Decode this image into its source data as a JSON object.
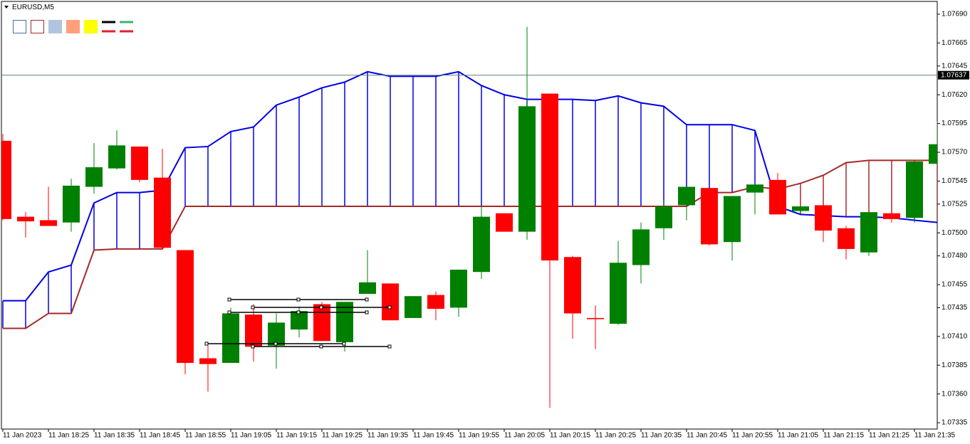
{
  "chart_data": {
    "type": "candlestick",
    "symbol": "EURUSD,M5",
    "categories": [
      "11 Jan 2023",
      null,
      "11 Jan 18:25",
      null,
      "11 Jan 18:35",
      null,
      "11 Jan 18:45",
      null,
      "11 Jan 18:55",
      null,
      "11 Jan 19:05",
      null,
      "11 Jan 19:15",
      null,
      "11 Jan 19:25",
      null,
      "11 Jan 19:35",
      null,
      "11 Jan 19:45",
      null,
      "11 Jan 19:55",
      null,
      "11 Jan 20:05",
      null,
      "11 Jan 20:15",
      null,
      "11 Jan 20:25",
      null,
      "11 Jan 20:35",
      null,
      "11 Jan 20:45",
      null,
      "11 Jan 20:55",
      null,
      "11 Jan 21:05",
      null,
      "11 Jan 21:15",
      null,
      "11 Jan 21:25",
      null,
      "11 Jan 21:35",
      null
    ],
    "open": [
      1.0758,
      1.07514,
      1.07511,
      1.07509,
      1.0754,
      1.07556,
      1.07575,
      1.07548,
      1.07485,
      1.07391,
      1.07387,
      1.07429,
      1.07402,
      1.07416,
      1.07438,
      1.07405,
      1.07447,
      1.07456,
      1.07426,
      1.07446,
      1.07435,
      1.07466,
      1.07517,
      1.07501,
      1.07621,
      1.07479,
      1.07426,
      1.07421,
      1.07472,
      1.07504,
      1.07524,
      1.07539,
      1.07492,
      1.07535,
      1.07546,
      1.07519,
      1.07524,
      1.07504,
      1.07483,
      1.07517,
      1.07513,
      1.0756
    ],
    "high": [
      1.07586,
      1.07518,
      1.0754,
      1.07547,
      1.07578,
      1.07589,
      1.07575,
      1.07573,
      1.07485,
      1.07402,
      1.07435,
      1.07438,
      1.0743,
      1.07436,
      1.0744,
      1.0744,
      1.07485,
      1.07456,
      1.07445,
      1.07449,
      1.07468,
      1.07523,
      1.07517,
      1.07679,
      1.07621,
      1.0748,
      1.07437,
      1.07493,
      1.07509,
      1.07528,
      1.0754,
      1.07539,
      1.07532,
      1.07543,
      1.07552,
      1.07523,
      1.07524,
      1.07506,
      1.07518,
      1.07519,
      1.07562,
      1.07597
    ],
    "low": [
      1.07511,
      1.07496,
      1.07506,
      1.07501,
      1.07534,
      1.07555,
      1.07544,
      1.07486,
      1.07377,
      1.07362,
      1.07387,
      1.07388,
      1.07382,
      1.07409,
      1.07406,
      1.07397,
      1.07447,
      1.07424,
      1.07426,
      1.07424,
      1.07427,
      1.0746,
      1.07501,
      1.07494,
      1.07348,
      1.07408,
      1.07399,
      1.0742,
      1.07456,
      1.07494,
      1.07511,
      1.07489,
      1.07476,
      1.07516,
      1.07516,
      1.07517,
      1.07492,
      1.07477,
      1.0748,
      1.07509,
      1.07509,
      1.0756
    ],
    "close": [
      1.07512,
      1.0751,
      1.07506,
      1.07541,
      1.07557,
      1.07576,
      1.07546,
      1.07487,
      1.07387,
      1.07386,
      1.0743,
      1.07401,
      1.07422,
      1.07432,
      1.07406,
      1.0744,
      1.07457,
      1.07424,
      1.07445,
      1.07434,
      1.07468,
      1.07514,
      1.07501,
      1.0761,
      1.07476,
      1.0743,
      1.07425,
      1.07474,
      1.07503,
      1.07523,
      1.0754,
      1.0749,
      1.07532,
      1.07542,
      1.07516,
      1.07523,
      1.07502,
      1.07486,
      1.07518,
      1.07512,
      1.07562,
      1.07577
    ],
    "up_color": "#008000",
    "down_color": "#ff0000",
    "lines": [
      {
        "color": "#0000e6",
        "values": [
          1.07441,
          1.07441,
          1.07466,
          1.07472,
          1.07526,
          1.07535,
          1.07535,
          1.07537,
          1.07574,
          1.07575,
          1.07588,
          1.07592,
          1.07611,
          1.07618,
          1.07626,
          1.07631,
          1.0764,
          1.07636,
          1.07636,
          1.07636,
          1.0764,
          1.07628,
          1.0762,
          1.07616,
          1.07616,
          1.07616,
          1.07615,
          1.07619,
          1.07613,
          1.0761,
          1.07594,
          1.07594,
          1.07594,
          1.07589,
          1.07523,
          1.07516,
          1.07515,
          1.07514,
          1.07514,
          1.07513,
          1.07511,
          1.07509
        ]
      },
      {
        "color": "#a52a2a",
        "values": [
          1.07417,
          1.07417,
          1.0743,
          1.0743,
          1.07485,
          1.07486,
          1.07486,
          1.07486,
          1.07523,
          1.07523,
          1.07523,
          1.07523,
          1.07523,
          1.07523,
          1.07523,
          1.07523,
          1.07523,
          1.07523,
          1.07523,
          1.07523,
          1.07523,
          1.07523,
          1.07523,
          1.07523,
          1.07523,
          1.07523,
          1.07523,
          1.07523,
          1.07523,
          1.07523,
          1.07523,
          1.07535,
          1.07535,
          1.0754,
          1.07538,
          1.07543,
          1.0755,
          1.07561,
          1.07563,
          1.07563,
          1.07563,
          1.07563
        ]
      }
    ],
    "bid": 1.07637,
    "bid_color": "#5f8a7a",
    "ylim": [
      1.073295,
      1.077011
    ],
    "yticks": [
      {
        "value": 1.0769,
        "label": "1.07690"
      },
      1.07665,
      1.07645,
      {
        "value": 1.0762,
        "label": "1.07620"
      },
      1.07595,
      {
        "value": 1.0757,
        "label": "1.07570"
      },
      1.07545,
      1.07525,
      {
        "value": 1.075,
        "label": "1.07500"
      },
      {
        "value": 1.0748,
        "label": "1.07480"
      },
      1.07455,
      1.07435,
      {
        "value": 1.0741,
        "label": "1.07410"
      },
      1.07385,
      {
        "value": 1.0736,
        "label": "1.07360"
      },
      1.07335
    ]
  }
}
